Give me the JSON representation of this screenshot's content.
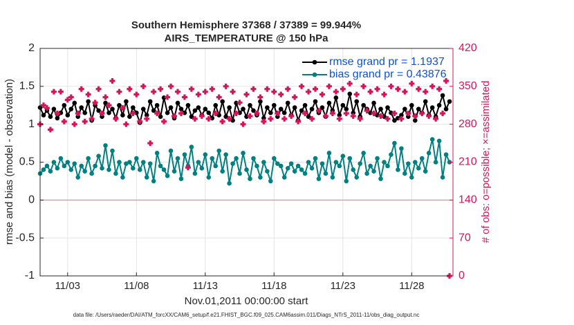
{
  "chart_data": {
    "type": "line",
    "title": "Southern Hemisphere 37368 / 37389 = 99.944%",
    "subtitle": "AIRS_TEMPERATURE @ 150 hPa",
    "x_label": "Nov.01,2011 00:00:00 start",
    "y_label": "rmse and bias (model - observation)",
    "y2_label": "# of obs: o=possible; ×=assimilated",
    "footnote": "data file: /Users/raeder/DAI/ATM_forcXX/CAM6_setup/f.e21.FHIST_BGC.f09_025.CAM6assim.011/Diags_NTrS_2011-11/obs_diag_output.nc",
    "xlim": [
      0,
      30
    ],
    "xticks": [
      {
        "value": 2,
        "label": "11/03"
      },
      {
        "value": 7,
        "label": "11/08"
      },
      {
        "value": 12,
        "label": "11/13"
      },
      {
        "value": 17,
        "label": "11/18"
      },
      {
        "value": 22,
        "label": "11/23"
      },
      {
        "value": 27,
        "label": "11/28"
      }
    ],
    "ylim": [
      -1,
      2
    ],
    "yticks": [
      -1,
      -0.5,
      0,
      0.5,
      1,
      1.5,
      2
    ],
    "y2lim": [
      0,
      420
    ],
    "y2ticks": [
      0,
      70,
      140,
      210,
      280,
      350,
      420
    ],
    "grid": true,
    "legend": "upper right",
    "x": [
      0,
      0.25,
      0.5,
      0.75,
      1,
      1.25,
      1.5,
      1.75,
      2,
      2.25,
      2.5,
      2.75,
      3,
      3.25,
      3.5,
      3.75,
      4,
      4.25,
      4.5,
      4.75,
      5,
      5.25,
      5.5,
      5.75,
      6,
      6.25,
      6.5,
      6.75,
      7,
      7.25,
      7.5,
      7.75,
      8,
      8.25,
      8.5,
      8.75,
      9,
      9.25,
      9.5,
      9.75,
      10,
      10.25,
      10.5,
      10.75,
      11,
      11.25,
      11.5,
      11.75,
      12,
      12.25,
      12.5,
      12.75,
      13,
      13.25,
      13.5,
      13.75,
      14,
      14.25,
      14.5,
      14.75,
      15,
      15.25,
      15.5,
      15.75,
      16,
      16.25,
      16.5,
      16.75,
      17,
      17.25,
      17.5,
      17.75,
      18,
      18.25,
      18.5,
      18.75,
      19,
      19.25,
      19.5,
      19.75,
      20,
      20.25,
      20.5,
      20.75,
      21,
      21.25,
      21.5,
      21.75,
      22,
      22.25,
      22.5,
      22.75,
      23,
      23.25,
      23.5,
      23.75,
      24,
      24.25,
      24.5,
      24.75,
      25,
      25.25,
      25.5,
      25.75,
      26,
      26.25,
      26.5,
      26.75,
      27,
      27.25,
      27.5,
      27.75,
      28,
      28.25,
      28.5,
      28.75,
      29,
      29.25,
      29.5,
      29.75
    ],
    "series": [
      {
        "name": "rmse grand pr = 1.1937",
        "color": "#000000",
        "marker": "circle",
        "values": [
          1.22,
          1.12,
          1.18,
          1.1,
          1.2,
          1.08,
          1.15,
          1.25,
          1.12,
          1.2,
          1.28,
          1.1,
          1.22,
          1.15,
          1.3,
          1.05,
          1.25,
          1.18,
          1.1,
          1.28,
          1.15,
          1.2,
          1.08,
          1.25,
          1.12,
          1.3,
          1.1,
          1.22,
          1.15,
          1.02,
          1.2,
          1.12,
          1.3,
          1.18,
          1.25,
          1.1,
          1.35,
          1.15,
          1.22,
          1.08,
          1.28,
          1.2,
          1.15,
          1.25,
          1.1,
          1.18,
          1.22,
          1.12,
          1.2,
          1.15,
          1.08,
          1.25,
          1.12,
          1.3,
          1.1,
          1.22,
          1.05,
          1.28,
          1.15,
          1.2,
          1.1,
          1.25,
          1.18,
          1.12,
          1.3,
          1.08,
          1.22,
          1.15,
          1.25,
          1.1,
          1.2,
          1.15,
          1.28,
          1.12,
          1.22,
          1.05,
          1.18,
          1.25,
          1.1,
          1.2,
          1.3,
          1.15,
          1.22,
          1.1,
          1.28,
          1.18,
          1.35,
          1.12,
          1.25,
          1.2,
          1.4,
          1.15,
          1.3,
          1.1,
          1.25,
          1.2,
          1.15,
          1.28,
          1.12,
          1.2,
          1.1,
          1.22,
          1.15,
          1.05,
          1.08,
          1.12,
          1.2,
          1.1,
          1.25,
          1.05,
          1.2,
          1.15,
          1.3,
          1.12,
          1.22,
          1.1,
          1.25,
          1.38,
          1.2,
          1.3
        ]
      },
      {
        "name": "bias grand pr = 0.43876",
        "color": "#008080",
        "marker": "circle",
        "values": [
          0.35,
          0.4,
          0.45,
          0.38,
          0.5,
          0.42,
          0.55,
          0.45,
          0.5,
          0.4,
          0.48,
          0.3,
          0.45,
          0.38,
          0.55,
          0.35,
          0.45,
          0.58,
          0.42,
          0.72,
          0.4,
          0.65,
          0.35,
          0.5,
          0.3,
          0.48,
          0.5,
          0.42,
          0.55,
          0.4,
          0.5,
          0.3,
          0.48,
          0.25,
          0.62,
          0.45,
          0.4,
          0.32,
          0.65,
          0.38,
          0.55,
          0.28,
          0.6,
          0.45,
          0.7,
          0.35,
          0.5,
          0.42,
          0.6,
          0.3,
          0.55,
          0.45,
          0.65,
          0.38,
          0.6,
          0.22,
          0.48,
          0.55,
          0.35,
          0.62,
          0.4,
          0.28,
          0.55,
          0.45,
          0.3,
          0.5,
          0.38,
          0.25,
          0.55,
          0.48,
          0.45,
          0.3,
          0.42,
          0.48,
          0.38,
          0.45,
          0.4,
          0.35,
          0.5,
          0.42,
          0.55,
          0.28,
          0.48,
          0.35,
          0.62,
          0.3,
          0.5,
          0.45,
          0.58,
          0.25,
          0.55,
          0.4,
          0.3,
          0.48,
          0.62,
          0.35,
          0.45,
          0.38,
          0.55,
          0.28,
          0.5,
          0.45,
          0.6,
          0.75,
          0.4,
          0.68,
          0.35,
          0.48,
          0.3,
          0.5,
          0.42,
          0.55,
          0.38,
          0.62,
          0.8,
          0.5,
          0.78,
          0.3,
          0.6,
          0.5
        ]
      },
      {
        "color": "#d6145a",
        "marker": "cross",
        "axis": "y2",
        "line": false,
        "values": [
          280,
          315,
          310,
          270,
          340,
          300,
          340,
          285,
          325,
          330,
          280,
          300,
          345,
          285,
          335,
          290,
          320,
          345,
          300,
          330,
          315,
          360,
          290,
          340,
          310,
          280,
          345,
          300,
          335,
          285,
          350,
          290,
          245,
          340,
          300,
          345,
          285,
          330,
          350,
          295,
          340,
          300,
          330,
          200,
          345,
          290,
          335,
          295,
          340,
          290,
          345,
          300,
          330,
          285,
          350,
          290,
          340,
          300,
          320,
          280,
          335,
          295,
          345,
          300,
          330,
          285,
          345,
          290,
          340,
          300,
          335,
          290,
          345,
          295,
          330,
          285,
          350,
          300,
          340,
          290,
          345,
          305,
          335,
          295,
          350,
          300,
          340,
          290,
          345,
          300,
          355,
          295,
          335,
          290,
          350,
          305,
          340,
          300,
          345,
          295,
          335,
          290,
          350,
          300,
          345,
          290,
          340,
          300,
          355,
          295,
          345,
          300,
          340,
          295,
          350,
          290,
          345,
          300,
          360,
          0
        ]
      }
    ]
  }
}
